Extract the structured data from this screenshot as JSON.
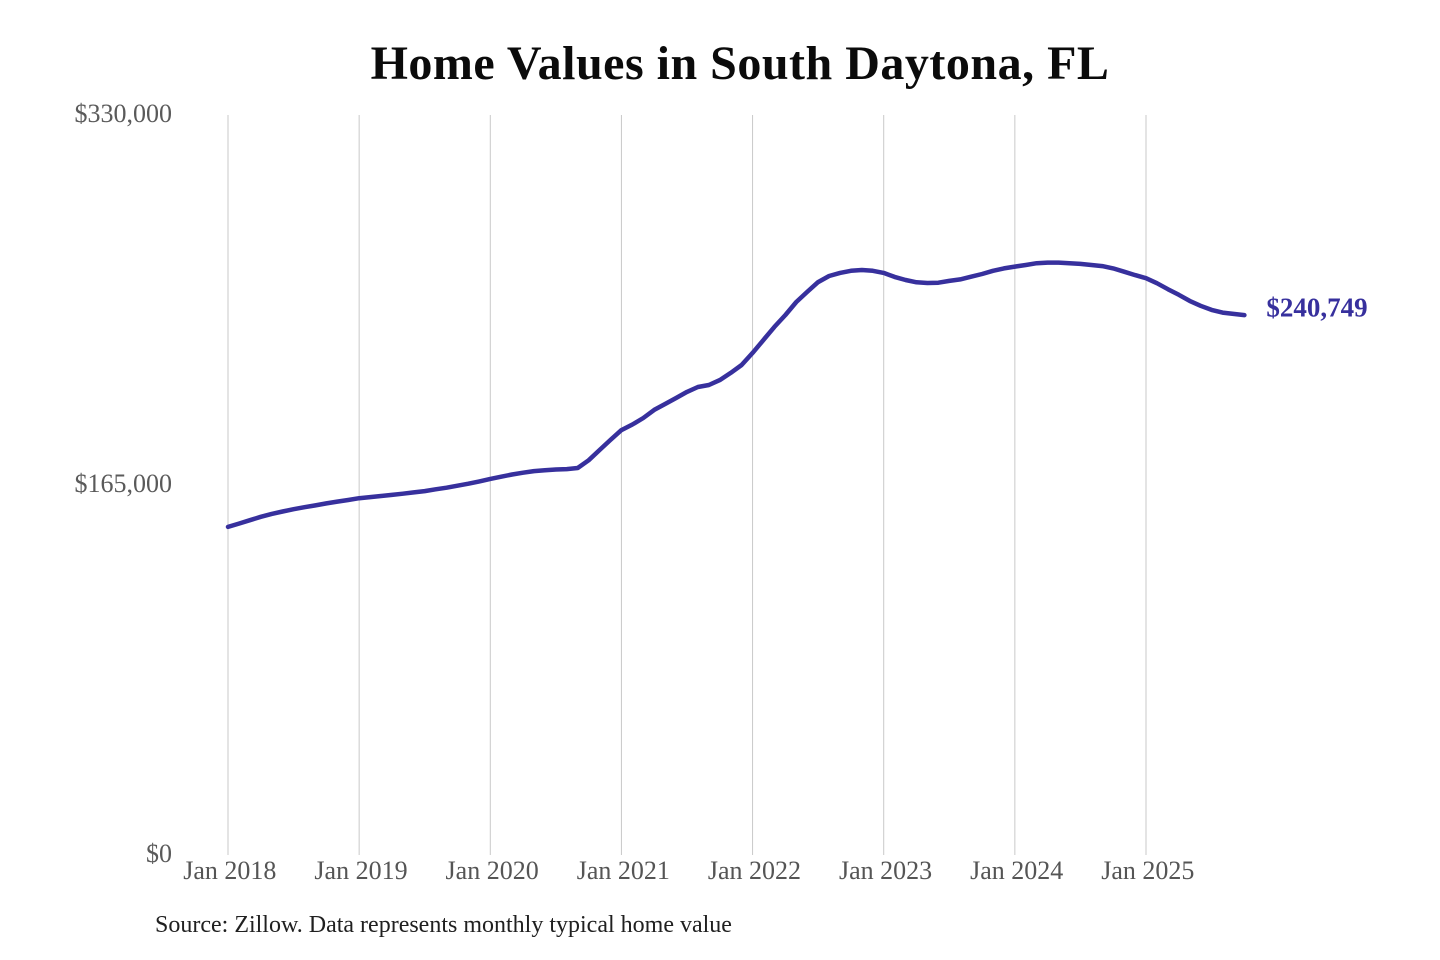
{
  "chart": {
    "title": "Home Values in South Daytona, FL",
    "end_label": "$240,749",
    "source": "Source: Zillow. Data represents monthly typical home value",
    "line_color": "#37309d",
    "grid_color": "#c9c9c9",
    "axis_label_color": "#5a5a5a"
  },
  "chart_data": {
    "type": "line",
    "title": "Home Values in South Daytona, FL",
    "xlabel": "",
    "ylabel": "",
    "ylim": [
      0,
      330000
    ],
    "y_ticks": [
      0,
      165000,
      330000
    ],
    "y_tick_labels": [
      "$0",
      "$165,000",
      "$330,000"
    ],
    "x_tick_labels": [
      "Jan 2018",
      "Jan 2019",
      "Jan 2020",
      "Jan 2021",
      "Jan 2022",
      "Jan 2023",
      "Jan 2024",
      "Jan 2025"
    ],
    "grid": "vertical-only",
    "legend": "none",
    "annotations": [
      {
        "text": "$240,749",
        "position": "line-end"
      }
    ],
    "x": [
      "2018-01",
      "2018-02",
      "2018-03",
      "2018-04",
      "2018-05",
      "2018-06",
      "2018-07",
      "2018-08",
      "2018-09",
      "2018-10",
      "2018-11",
      "2018-12",
      "2019-01",
      "2019-02",
      "2019-03",
      "2019-04",
      "2019-05",
      "2019-06",
      "2019-07",
      "2019-08",
      "2019-09",
      "2019-10",
      "2019-11",
      "2019-12",
      "2020-01",
      "2020-02",
      "2020-03",
      "2020-04",
      "2020-05",
      "2020-06",
      "2020-07",
      "2020-08",
      "2020-09",
      "2020-10",
      "2020-11",
      "2020-12",
      "2021-01",
      "2021-02",
      "2021-03",
      "2021-04",
      "2021-05",
      "2021-06",
      "2021-07",
      "2021-08",
      "2021-09",
      "2021-10",
      "2021-11",
      "2021-12",
      "2022-01",
      "2022-02",
      "2022-03",
      "2022-04",
      "2022-05",
      "2022-06",
      "2022-07",
      "2022-08",
      "2022-09",
      "2022-10",
      "2022-11",
      "2022-12",
      "2023-01",
      "2023-02",
      "2023-03",
      "2023-04",
      "2023-05",
      "2023-06",
      "2023-07",
      "2023-08",
      "2023-09",
      "2023-10",
      "2023-11",
      "2023-12",
      "2024-01",
      "2024-02",
      "2024-03",
      "2024-04",
      "2024-05",
      "2024-06",
      "2024-07",
      "2024-08",
      "2024-09",
      "2024-10",
      "2024-11",
      "2024-12",
      "2025-01",
      "2025-02",
      "2025-03",
      "2025-04",
      "2025-05",
      "2025-06",
      "2025-07",
      "2025-08",
      "2025-09",
      "2025-10"
    ],
    "series": [
      {
        "name": "Monthly typical home value",
        "values": [
          146300,
          147800,
          149300,
          150800,
          152100,
          153200,
          154200,
          155100,
          155900,
          156800,
          157600,
          158300,
          159100,
          159600,
          160100,
          160600,
          161100,
          161700,
          162300,
          163100,
          163800,
          164700,
          165600,
          166600,
          167700,
          168700,
          169700,
          170500,
          171200,
          171600,
          171900,
          172100,
          172600,
          176000,
          180600,
          185100,
          189500,
          192000,
          194900,
          198500,
          201100,
          203800,
          206500,
          208700,
          209600,
          211800,
          215000,
          218500,
          223900,
          229700,
          235500,
          240800,
          246600,
          251100,
          255500,
          258200,
          259600,
          260500,
          260900,
          260500,
          259600,
          257800,
          256400,
          255400,
          255100,
          255200,
          256000,
          256700,
          257900,
          259100,
          260500,
          261600,
          262400,
          263100,
          263900,
          264200,
          264200,
          263900,
          263600,
          263100,
          262600,
          261600,
          260100,
          258600,
          257200,
          255000,
          252300,
          249800,
          247100,
          244900,
          243100,
          241900,
          241300,
          240749
        ]
      }
    ],
    "last_value": 240749
  }
}
